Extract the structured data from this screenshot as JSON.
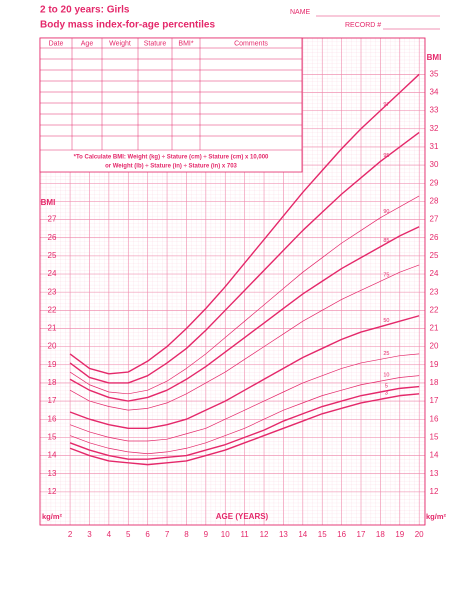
{
  "header": {
    "title": "2 to 20 years: Girls",
    "subtitle": "Body mass index-for-age percentiles",
    "name_label": "NAME",
    "record_label": "RECORD #"
  },
  "table": {
    "columns": [
      "Date",
      "Age",
      "Weight",
      "Stature",
      "BMI*",
      "Comments"
    ],
    "note_line1": "*To Calculate BMI: Weight (kg) ÷ Stature (cm) ÷ Stature (cm) x 10,000",
    "note_line2": "or Weight (lb) ÷ Stature (in) ÷ Stature (in) x 703"
  },
  "chart_data": {
    "type": "line",
    "xlabel": "AGE (YEARS)",
    "ylabel": "BMI",
    "yunit": "kg/m²",
    "color": "#e4286a",
    "grid": true,
    "x": [
      2,
      3,
      4,
      5,
      6,
      7,
      8,
      9,
      10,
      11,
      12,
      13,
      14,
      15,
      16,
      17,
      18,
      19,
      20
    ],
    "xlim": [
      0.45,
      20.3
    ],
    "xticks": [
      2,
      3,
      4,
      5,
      6,
      7,
      8,
      9,
      10,
      11,
      12,
      13,
      14,
      15,
      16,
      17,
      18,
      19,
      20
    ],
    "ylim": [
      11,
      37
    ],
    "yticks": [
      12,
      13,
      14,
      15,
      16,
      17,
      18,
      19,
      20,
      21,
      22,
      23,
      24,
      25,
      26,
      27,
      28,
      29,
      30,
      31,
      32,
      33,
      34,
      35
    ],
    "series": [
      {
        "name": "97",
        "line_width": 1.4,
        "values": [
          19.6,
          18.8,
          18.5,
          18.6,
          19.2,
          20.0,
          21.0,
          22.1,
          23.3,
          24.6,
          25.9,
          27.2,
          28.5,
          29.7,
          30.9,
          32.0,
          33.0,
          34.0,
          35.0
        ]
      },
      {
        "name": "95",
        "line_width": 1.4,
        "values": [
          19.1,
          18.3,
          18.0,
          18.0,
          18.4,
          19.1,
          19.9,
          20.9,
          22.0,
          23.1,
          24.2,
          25.3,
          26.4,
          27.4,
          28.4,
          29.3,
          30.2,
          31.0,
          31.8
        ]
      },
      {
        "name": "90",
        "line_width": 0.7,
        "values": [
          18.6,
          17.9,
          17.5,
          17.4,
          17.6,
          18.1,
          18.8,
          19.6,
          20.5,
          21.4,
          22.3,
          23.2,
          24.1,
          24.9,
          25.7,
          26.4,
          27.1,
          27.7,
          28.3
        ]
      },
      {
        "name": "85",
        "line_width": 1.4,
        "values": [
          18.2,
          17.6,
          17.2,
          17.0,
          17.2,
          17.6,
          18.2,
          18.9,
          19.7,
          20.5,
          21.3,
          22.1,
          22.9,
          23.6,
          24.3,
          24.9,
          25.5,
          26.1,
          26.6
        ]
      },
      {
        "name": "75",
        "line_width": 0.7,
        "values": [
          17.6,
          17.0,
          16.7,
          16.5,
          16.6,
          16.9,
          17.4,
          18.0,
          18.6,
          19.3,
          20.0,
          20.7,
          21.4,
          22.0,
          22.6,
          23.1,
          23.6,
          24.1,
          24.5
        ]
      },
      {
        "name": "50",
        "line_width": 1.4,
        "values": [
          16.4,
          16.0,
          15.7,
          15.5,
          15.5,
          15.7,
          16.0,
          16.5,
          17.0,
          17.6,
          18.2,
          18.8,
          19.4,
          19.9,
          20.4,
          20.8,
          21.1,
          21.4,
          21.7
        ]
      },
      {
        "name": "25",
        "line_width": 0.7,
        "values": [
          15.7,
          15.3,
          15.0,
          14.8,
          14.8,
          14.9,
          15.2,
          15.5,
          16.0,
          16.5,
          17.0,
          17.5,
          18.0,
          18.4,
          18.8,
          19.1,
          19.3,
          19.5,
          19.6
        ]
      },
      {
        "name": "10",
        "line_width": 0.7,
        "values": [
          15.1,
          14.7,
          14.4,
          14.2,
          14.1,
          14.2,
          14.4,
          14.7,
          15.1,
          15.5,
          16.0,
          16.5,
          16.9,
          17.3,
          17.6,
          17.9,
          18.1,
          18.3,
          18.4
        ]
      },
      {
        "name": "5",
        "line_width": 1.4,
        "values": [
          14.7,
          14.3,
          14.0,
          13.8,
          13.8,
          13.9,
          14.0,
          14.3,
          14.6,
          15.0,
          15.4,
          15.9,
          16.3,
          16.7,
          17.0,
          17.3,
          17.5,
          17.7,
          17.8
        ]
      },
      {
        "name": "3",
        "line_width": 1.4,
        "values": [
          14.4,
          14.0,
          13.7,
          13.6,
          13.5,
          13.6,
          13.7,
          14.0,
          14.3,
          14.7,
          15.1,
          15.5,
          15.9,
          16.3,
          16.6,
          16.9,
          17.1,
          17.3,
          17.4
        ]
      }
    ]
  }
}
